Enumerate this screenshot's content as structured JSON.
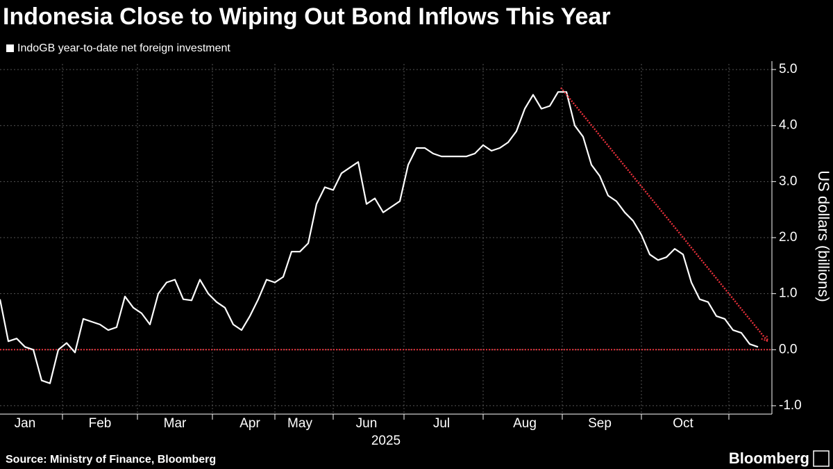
{
  "chart_data": {
    "type": "line",
    "title": "Indonesia Close to Wiping Out Bond Inflows This Year",
    "source": "Source: Ministry of Finance, Bloomberg",
    "logo": "Bloomberg",
    "x_axis_label": "2025",
    "y_axis_label": "US dollars (billions)",
    "categories": [
      null,
      null,
      null,
      "Jan",
      null,
      null,
      null,
      null,
      null,
      null,
      null,
      null,
      "Feb",
      null,
      null,
      null,
      null,
      null,
      null,
      null,
      null,
      "Mar",
      null,
      null,
      null,
      null,
      null,
      null,
      null,
      null,
      "Apr",
      null,
      null,
      null,
      null,
      null,
      "May",
      null,
      null,
      null,
      null,
      null,
      null,
      null,
      "Jun",
      null,
      null,
      null,
      null,
      null,
      null,
      null,
      null,
      "Jul",
      null,
      null,
      null,
      null,
      null,
      null,
      null,
      null,
      null,
      "Aug",
      null,
      null,
      null,
      null,
      null,
      null,
      null,
      null,
      "Sep",
      null,
      null,
      null,
      null,
      null,
      null,
      null,
      null,
      null,
      "Oct",
      null,
      null,
      null,
      null,
      null,
      null,
      null,
      null,
      null
    ],
    "series": [
      {
        "name": "IndoGB year-to-date net foreign investment",
        "color": "#ffffff",
        "values": [
          0.9,
          0.15,
          0.2,
          0.05,
          0.0,
          -0.55,
          -0.6,
          0.0,
          0.12,
          -0.05,
          0.55,
          0.5,
          0.45,
          0.35,
          0.4,
          0.95,
          0.75,
          0.65,
          0.45,
          1.0,
          1.2,
          1.25,
          0.9,
          0.88,
          1.25,
          1.0,
          0.85,
          0.75,
          0.45,
          0.35,
          0.6,
          0.9,
          1.25,
          1.2,
          1.3,
          1.75,
          1.75,
          1.9,
          2.6,
          2.9,
          2.85,
          3.15,
          3.25,
          3.35,
          2.6,
          2.7,
          2.45,
          2.55,
          2.65,
          3.3,
          3.6,
          3.6,
          3.5,
          3.45,
          3.45,
          3.45,
          3.45,
          3.5,
          3.65,
          3.55,
          3.6,
          3.7,
          3.9,
          4.3,
          4.55,
          4.3,
          4.35,
          4.6,
          4.6,
          4.0,
          3.8,
          3.3,
          3.1,
          2.75,
          2.65,
          2.45,
          2.3,
          2.05,
          1.7,
          1.6,
          1.65,
          1.8,
          1.7,
          1.2,
          0.9,
          0.85,
          0.6,
          0.55,
          0.35,
          0.3,
          0.1,
          0.05
        ]
      }
    ],
    "reference_line": {
      "value": 0,
      "color": "#e8303a"
    },
    "ylim": [
      -1.1,
      5.1
    ],
    "yticks": [
      {
        "value": -1,
        "label": "-1.0"
      },
      {
        "value": 0,
        "label": "0.0"
      },
      {
        "value": 1,
        "label": "1.0"
      },
      {
        "value": 2,
        "label": "2.0"
      },
      {
        "value": 3,
        "label": "3.0"
      },
      {
        "value": 4,
        "label": "4.0"
      },
      {
        "value": 5,
        "label": "5.0"
      }
    ],
    "grid": true
  }
}
